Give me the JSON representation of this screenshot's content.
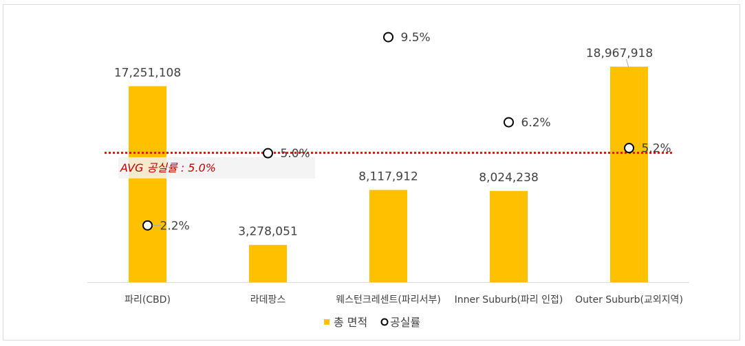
{
  "chart_data": {
    "type": "bar",
    "categories": [
      "파리(CBD)",
      "라데팡스",
      "웨스턴크레센트(파리서부)",
      "Inner Suburb(파리 인접)",
      "Outer Suburb(교외지역)"
    ],
    "series": [
      {
        "name": "총 면적",
        "kind": "bar",
        "color": "#ffc000",
        "values": [
          17251108,
          3278051,
          8117912,
          8024238,
          18967918
        ],
        "labels": [
          "17,251,108",
          "3,278,051",
          "8,117,912",
          "8,024,238",
          "18,967,918"
        ]
      },
      {
        "name": "공실률",
        "kind": "marker",
        "marker": "circle-outline",
        "color": "#000000",
        "values": [
          2.2,
          5.0,
          9.5,
          6.2,
          5.2
        ],
        "labels": [
          "2.2%",
          "5.0%",
          "9.5%",
          "6.2%",
          "5.2%"
        ]
      }
    ],
    "reference_line": {
      "label": "AVG 공실률 : 5.0%",
      "value": 5.0,
      "color": "#ff0000",
      "style": "dotted"
    },
    "bar_axis_range": [
      0,
      20000000
    ],
    "marker_axis_range": [
      0,
      10.7
    ],
    "legend_position": "bottom",
    "grid": false
  }
}
